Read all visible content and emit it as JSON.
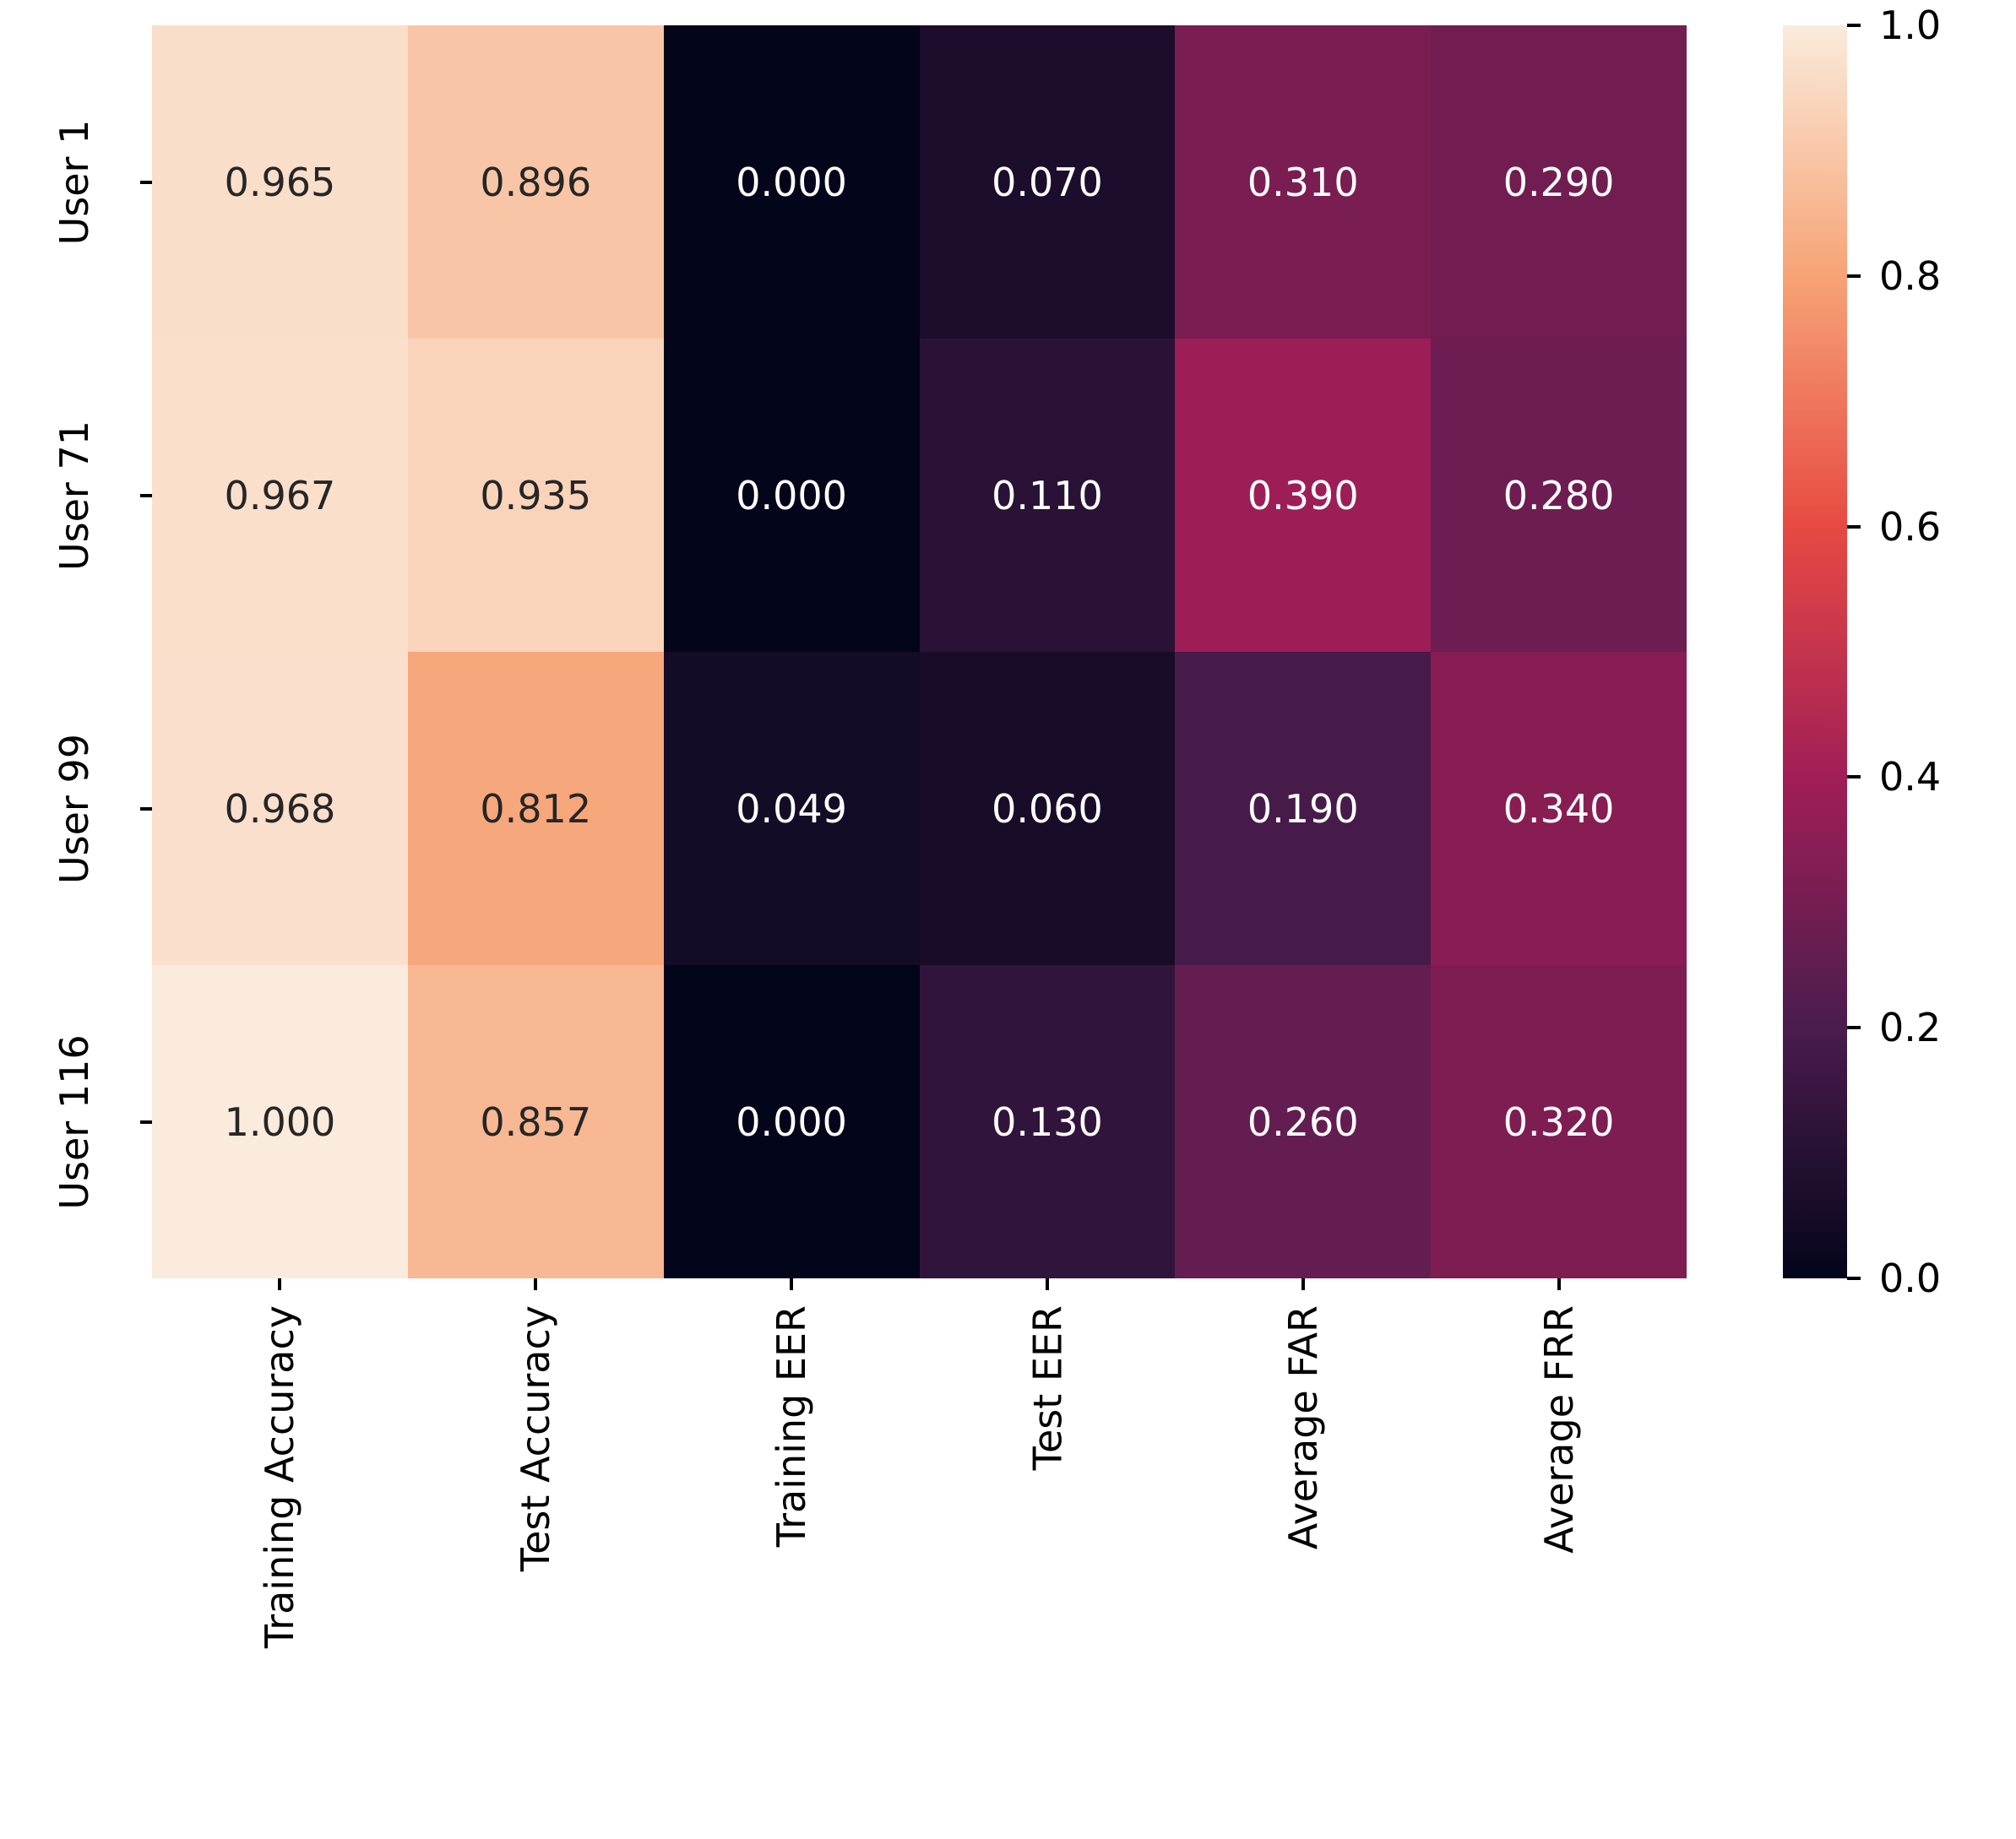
{
  "chart_data": {
    "type": "heatmap",
    "title": "",
    "rows": [
      "User 1",
      "User 71",
      "User 99",
      "User 116"
    ],
    "columns": [
      "Training Accuracy",
      "Test Accuracy",
      "Training EER",
      "Test EER",
      "Average FAR",
      "Average FRR"
    ],
    "matrix": [
      [
        0.965,
        0.896,
        0.0,
        0.07,
        0.31,
        0.29
      ],
      [
        0.967,
        0.935,
        0.0,
        0.11,
        0.39,
        0.28
      ],
      [
        0.968,
        0.812,
        0.049,
        0.06,
        0.19,
        0.34
      ],
      [
        1.0,
        0.857,
        0.0,
        0.13,
        0.26,
        0.32
      ]
    ],
    "cell_labels": [
      [
        "0.965",
        "0.896",
        "0.000",
        "0.070",
        "0.310",
        "0.290"
      ],
      [
        "0.967",
        "0.935",
        "0.000",
        "0.110",
        "0.390",
        "0.280"
      ],
      [
        "0.968",
        "0.812",
        "0.049",
        "0.060",
        "0.190",
        "0.340"
      ],
      [
        "1.000",
        "0.857",
        "0.000",
        "0.130",
        "0.260",
        "0.320"
      ]
    ],
    "colormap": "rocket",
    "vmin": 0.0,
    "vmax": 1.0,
    "annotated": true,
    "grid_visible": false,
    "colorbar": {
      "position": "right",
      "tick_labels": [
        "1.0",
        "0.8",
        "0.6",
        "0.4",
        "0.2",
        "0.0"
      ],
      "tick_values": [
        1.0,
        0.8,
        0.6,
        0.4,
        0.2,
        0.0
      ]
    },
    "colors": {
      "background": "#ffffff",
      "annotation_dark": "#262626",
      "annotation_light": "#ffffff",
      "axis_tick": "#000000"
    }
  }
}
